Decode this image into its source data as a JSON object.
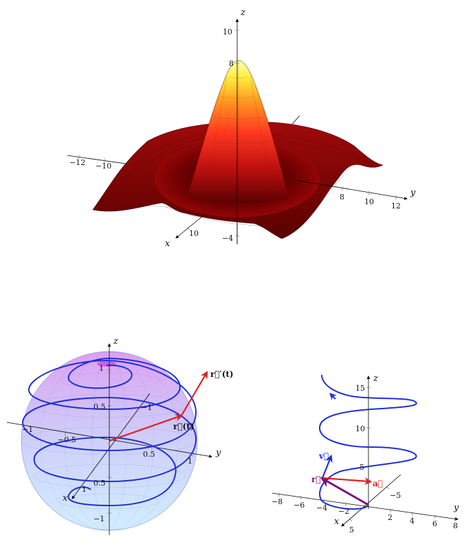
{
  "surface_plot": {
    "axis_labels": {
      "x": "x",
      "y": "y",
      "z": "z"
    },
    "ticks": {
      "y": [
        "−12",
        "−10",
        "8",
        "10",
        "12"
      ],
      "x": [
        "10"
      ],
      "z": [
        "10",
        "8",
        "−4"
      ]
    },
    "colors": {
      "low": "#8b0000",
      "mid": "#ff3b1f",
      "high": "#ffff80"
    }
  },
  "sphere_plot": {
    "axis_labels": {
      "x": "x",
      "y": "y",
      "z": "z"
    },
    "ticks": {
      "z": [
        "1",
        "0.5",
        "0.5",
        "−1"
      ],
      "x": [
        "−1",
        "1"
      ],
      "y": [
        "−0.5",
        "0.5",
        "1",
        "−1"
      ]
    },
    "labels": {
      "position": "r⃗(t)",
      "derivative": "r⃗′(t)"
    },
    "colors": {
      "curve": "#1f2fd6",
      "vector": "#e0201f",
      "sphere_top": "#d070e8",
      "sphere_bottom": "#80c8ff"
    }
  },
  "helix_plot": {
    "axis_labels": {
      "x": "x",
      "y": "y",
      "z": "z"
    },
    "ticks": {
      "z": [
        "15",
        "10",
        "5"
      ],
      "y": [
        "−8",
        "−6",
        "−4",
        "−2",
        "2",
        "4",
        "6",
        "8"
      ],
      "x": [
        "5",
        "−5"
      ]
    },
    "labels": {
      "v": "v⃗",
      "r": "r⃗",
      "a": "a⃗"
    },
    "colors": {
      "curve": "#1f2fd6",
      "v": "#1f2fd6",
      "r": "#7b1080",
      "a": "#e0201f"
    }
  }
}
